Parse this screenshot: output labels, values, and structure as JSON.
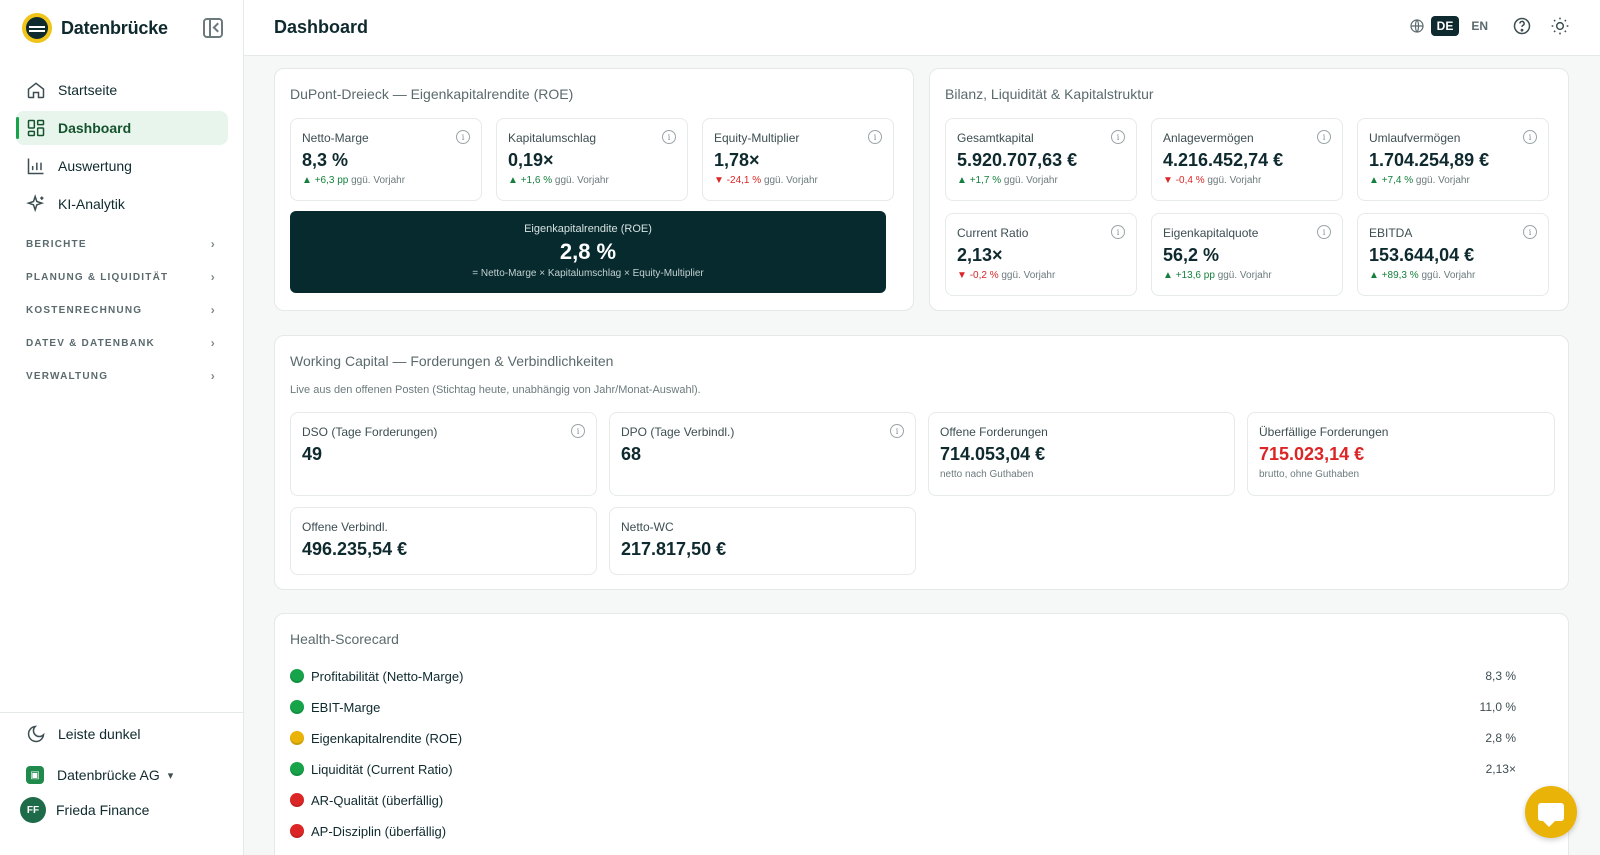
{
  "brand": {
    "name": "Datenbrücke"
  },
  "sidebar": {
    "items": [
      {
        "label": "Startseite"
      },
      {
        "label": "Dashboard"
      },
      {
        "label": "Auswertung"
      },
      {
        "label": "KI-Analytik"
      }
    ],
    "sections": [
      {
        "label": "BERICHTE"
      },
      {
        "label": "PLANUNG & LIQUIDITÄT"
      },
      {
        "label": "KOSTENRECHNUNG"
      },
      {
        "label": "DATEV & DATENBANK"
      },
      {
        "label": "VERWALTUNG"
      }
    ],
    "theme_label": "Leiste dunkel",
    "org_name": "Datenbrücke AG",
    "user_initials": "FF",
    "user_name": "Frieda Finance"
  },
  "header": {
    "title": "Dashboard",
    "lang_active": "DE",
    "lang_other": "EN"
  },
  "dupont": {
    "title": "DuPont-Dreieck — Eigenkapitalrendite (ROE)",
    "kpis": [
      {
        "label": "Netto-Marge",
        "value": "8,3 %",
        "delta": "+6,3 pp",
        "suffix": "ggü. Vorjahr",
        "dir": "up"
      },
      {
        "label": "Kapitalumschlag",
        "value": "0,19×",
        "delta": "+1,6 %",
        "suffix": "ggü. Vorjahr",
        "dir": "up"
      },
      {
        "label": "Equity-Multiplier",
        "value": "1,78×",
        "delta": "-24,1 %",
        "suffix": "ggü. Vorjahr",
        "dir": "down"
      }
    ],
    "roe": {
      "label": "Eigenkapitalrendite (ROE)",
      "value": "2,8 %",
      "formula": "= Netto-Marge × Kapitalumschlag × Equity-Multiplier"
    }
  },
  "bilanz": {
    "title": "Bilanz, Liquidität & Kapitalstruktur",
    "kpis": [
      {
        "label": "Gesamtkapital",
        "value": "5.920.707,63 €",
        "delta": "+1,7 %",
        "suffix": "ggü. Vorjahr",
        "dir": "up"
      },
      {
        "label": "Anlagevermögen",
        "value": "4.216.452,74 €",
        "delta": "-0,4 %",
        "suffix": "ggü. Vorjahr",
        "dir": "down"
      },
      {
        "label": "Umlaufvermögen",
        "value": "1.704.254,89 €",
        "delta": "+7,4 %",
        "suffix": "ggü. Vorjahr",
        "dir": "up"
      },
      {
        "label": "Current Ratio",
        "value": "2,13×",
        "delta": "-0,2 %",
        "suffix": "ggü. Vorjahr",
        "dir": "down"
      },
      {
        "label": "Eigenkapitalquote",
        "value": "56,2 %",
        "delta": "+13,6 pp",
        "suffix": "ggü. Vorjahr",
        "dir": "up"
      },
      {
        "label": "EBITDA",
        "value": "153.644,04 €",
        "delta": "+89,3 %",
        "suffix": "ggü. Vorjahr",
        "dir": "up"
      }
    ]
  },
  "wc": {
    "title": "Working Capital — Forderungen & Verbindlichkeiten",
    "note": "Live aus den offenen Posten (Stichtag heute, unabhängig von Jahr/Monat-Auswahl).",
    "kpis": [
      {
        "label": "DSO (Tage Forderungen)",
        "value": "49"
      },
      {
        "label": "DPO (Tage Verbindl.)",
        "value": "68"
      },
      {
        "label": "Offene Forderungen",
        "value": "714.053,04 €",
        "sub": "netto nach Guthaben"
      },
      {
        "label": "Überfällige Forderungen",
        "value": "715.023,14 €",
        "sub": "brutto, ohne Guthaben"
      },
      {
        "label": "Offene Verbindl.",
        "value": "496.235,54 €"
      },
      {
        "label": "Netto-WC",
        "value": "217.817,50 €"
      }
    ]
  },
  "health": {
    "title": "Health-Scorecard",
    "rows": [
      {
        "label": "Profitabilität (Netto-Marge)",
        "value": "8,3 %",
        "status": "green"
      },
      {
        "label": "EBIT-Marge",
        "value": "11,0 %",
        "status": "green"
      },
      {
        "label": "Eigenkapitalrendite (ROE)",
        "value": "2,8 %",
        "status": "yellow"
      },
      {
        "label": "Liquidität (Current Ratio)",
        "value": "2,13×",
        "status": "green"
      },
      {
        "label": "AR-Qualität (überfällig)",
        "value": "",
        "status": "red"
      },
      {
        "label": "AP-Disziplin (überfällig)",
        "value": "",
        "status": "red"
      }
    ]
  },
  "colors": {
    "accent": "#16a34a",
    "dark": "#062a2d",
    "warn": "#eab308",
    "danger": "#dc2626"
  }
}
